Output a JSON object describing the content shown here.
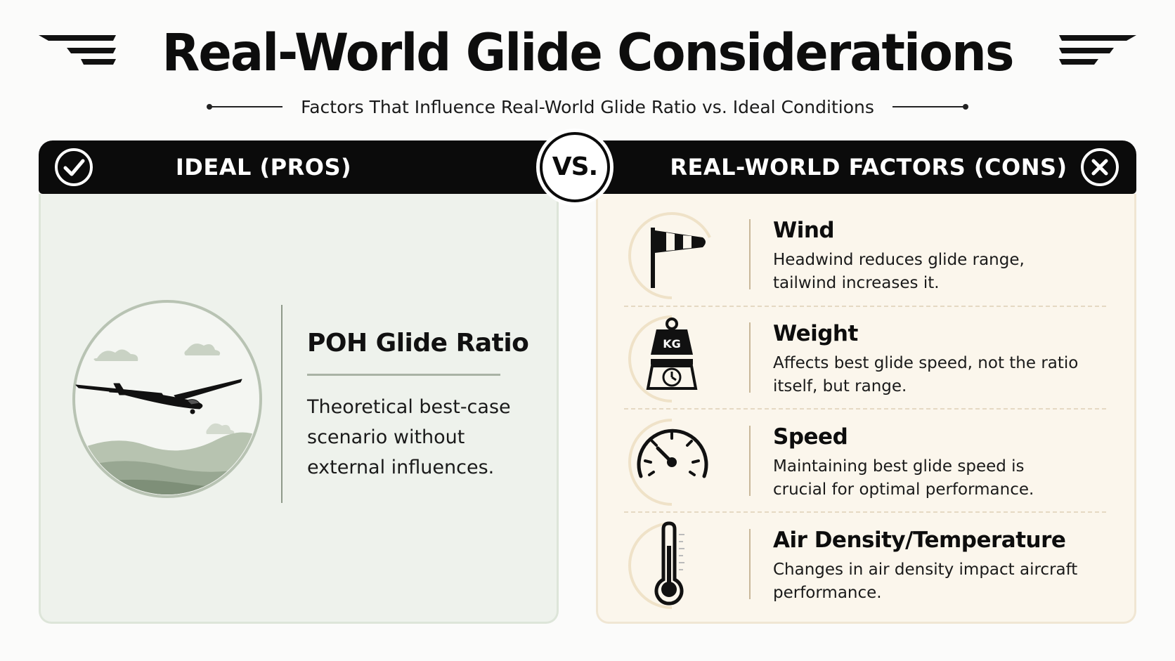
{
  "title": "Real-World Glide Considerations",
  "subtitle": "Factors That Influence Real-World Glide Ratio vs. Ideal Conditions",
  "left_header": {
    "label": "IDEAL (PROS)",
    "icon": "check-circle-icon"
  },
  "right_header": {
    "label": "REAL-WORLD FACTORS (CONS)",
    "icon": "x-circle-icon"
  },
  "vs_label": "VS.",
  "ideal": {
    "title": "POH Glide Ratio",
    "description": "Theoretical best-case scenario without external influences.",
    "icon": "glider-illustration"
  },
  "factors": [
    {
      "name": "Wind",
      "description": "Headwind reduces glide range, tailwind increases it.",
      "icon": "windsock-icon"
    },
    {
      "name": "Weight",
      "description": "Affects best glide speed, not the ratio itself, but range.",
      "icon": "weight-scale-icon",
      "icon_text": "KG"
    },
    {
      "name": "Speed",
      "description": "Maintaining best glide speed is crucial for optimal performance.",
      "icon": "speedometer-icon"
    },
    {
      "name": "Air Density/Temperature",
      "description": "Changes in air density impact aircraft performance.",
      "icon": "thermometer-icon"
    }
  ],
  "colors": {
    "header_bar": "#0b0b0b",
    "ideal_panel": "#eef2ec",
    "factors_panel": "#fbf6ec",
    "accent_tan": "#c9b89a"
  }
}
